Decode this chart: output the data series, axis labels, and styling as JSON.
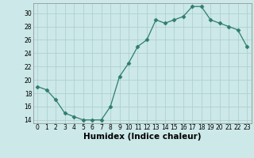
{
  "x": [
    0,
    1,
    2,
    3,
    4,
    5,
    6,
    7,
    8,
    9,
    10,
    11,
    12,
    13,
    14,
    15,
    16,
    17,
    18,
    19,
    20,
    21,
    22,
    23
  ],
  "y": [
    19.0,
    18.5,
    17.0,
    15.0,
    14.5,
    14.0,
    14.0,
    14.0,
    16.0,
    20.5,
    22.5,
    25.0,
    26.0,
    29.0,
    28.5,
    29.0,
    29.5,
    31.0,
    31.0,
    29.0,
    28.5,
    28.0,
    27.5,
    25.0
  ],
  "xlabel": "Humidex (Indice chaleur)",
  "xlim": [
    -0.5,
    23.5
  ],
  "ylim": [
    13.5,
    31.5
  ],
  "yticks": [
    14,
    16,
    18,
    20,
    22,
    24,
    26,
    28,
    30
  ],
  "xticks": [
    0,
    1,
    2,
    3,
    4,
    5,
    6,
    7,
    8,
    9,
    10,
    11,
    12,
    13,
    14,
    15,
    16,
    17,
    18,
    19,
    20,
    21,
    22,
    23
  ],
  "line_color": "#2e7d6e",
  "marker": "D",
  "marker_size": 2.5,
  "bg_color": "#cce8e8",
  "grid_color": "#aacccc",
  "label_fontsize": 7.5,
  "tick_fontsize": 5.5
}
